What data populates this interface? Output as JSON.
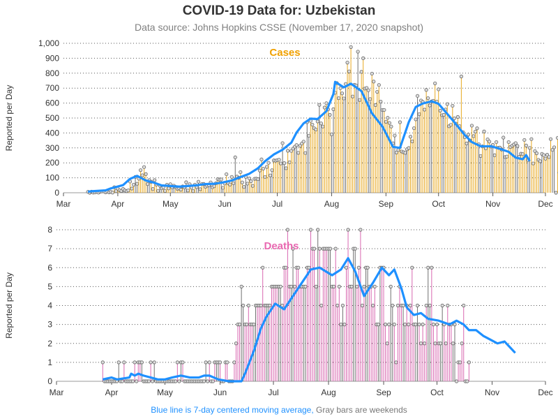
{
  "title": "COVID-19 Data for: Uzbekistan",
  "subtitle": "Data source: Johns Hopkins CSSE (November 17, 2020 snapshot)",
  "footer": {
    "moving_average_note": "Blue line is 7-day centered moving average,",
    "weekend_note": "Gray bars are weekends"
  },
  "colors": {
    "cases_bar": "#e8a820",
    "deaths_bar": "#d867b0",
    "weekend_bar": "#707070",
    "moving_average": "#1e90ff",
    "cases_label": "#f0a000",
    "deaths_label": "#e868b0"
  },
  "chart_data": [
    {
      "type": "bar",
      "panel_label": "Cases",
      "ylabel": "Reported per Day",
      "ylim": [
        0,
        1000
      ],
      "yticks": [
        0,
        100,
        200,
        300,
        400,
        500,
        600,
        700,
        800,
        900,
        1000
      ],
      "ytick_labels": [
        "0",
        "100",
        "200",
        "300",
        "400",
        "500",
        "600",
        "700",
        "800",
        "900",
        "1,000"
      ],
      "x_range": [
        "2020-03-01",
        "2020-12-01"
      ],
      "x_tick_labels": [
        "Mar",
        "Apr",
        "May",
        "Jun",
        "Jul",
        "Aug",
        "Sep",
        "Oct",
        "Nov",
        "Dec"
      ],
      "grid": "horizontal dotted",
      "series_start": "2020-03-15",
      "series_end": "2020-11-16",
      "values": [
        6,
        0,
        7,
        1,
        2,
        6,
        1,
        7,
        9,
        9,
        3,
        8,
        3,
        6,
        1,
        37,
        11,
        27,
        17,
        12,
        25,
        16,
        11,
        16,
        75,
        28,
        54,
        106,
        60,
        94,
        151,
        117,
        172,
        125,
        58,
        84,
        73,
        25,
        84,
        55,
        13,
        47,
        30,
        35,
        12,
        53,
        29,
        57,
        36,
        47,
        39,
        26,
        29,
        21,
        42,
        36,
        70,
        15,
        57,
        34,
        11,
        54,
        38,
        74,
        24,
        58,
        59,
        40,
        47,
        50,
        69,
        37,
        44,
        64,
        91,
        88,
        89,
        33,
        62,
        124,
        64,
        55,
        106,
        64,
        237,
        108,
        100,
        138,
        69,
        39,
        106,
        61,
        96,
        77,
        46,
        93,
        94,
        91,
        149,
        223,
        161,
        106,
        173,
        200,
        116,
        151,
        216,
        215,
        218,
        221,
        196,
        332,
        198,
        164,
        281,
        204,
        280,
        295,
        308,
        319,
        267,
        314,
        329,
        342,
        266,
        472,
        381,
        481,
        456,
        432,
        423,
        477,
        588,
        464,
        443,
        570,
        599,
        558,
        521,
        391,
        559,
        669,
        734,
        633,
        700,
        665,
        631,
        728,
        871,
        812,
        975,
        644,
        722,
        718,
        944,
        621,
        809,
        900,
        697,
        701,
        686,
        627,
        797,
        744,
        587,
        675,
        721,
        610,
        554,
        554,
        475,
        501,
        467,
        443,
        331,
        383,
        269,
        286,
        472,
        276,
        271,
        267,
        291,
        299,
        375,
        344,
        432,
        491,
        648,
        526,
        617,
        608,
        556,
        688,
        633,
        584,
        611,
        615,
        732,
        610,
        692,
        549,
        519,
        521,
        557,
        593,
        445,
        454,
        582,
        498,
        462,
        507,
        446,
        778,
        405,
        372,
        330,
        389,
        350,
        449,
        379,
        409,
        431,
        324,
        246,
        310,
        410,
        297,
        357,
        342,
        309,
        320,
        251,
        339,
        301,
        302,
        289,
        369,
        239,
        242,
        339,
        306,
        315,
        323,
        332,
        313,
        240,
        261,
        259,
        353,
        316,
        219,
        300,
        359,
        196,
        279,
        264,
        220,
        211,
        260,
        252,
        228,
        254,
        239,
        359,
        287,
        304,
        0,
        367,
        135,
        208,
        248,
        269
      ],
      "moving_average_points": [
        [
          14,
          7
        ],
        [
          16,
          10
        ],
        [
          24,
          16
        ],
        [
          27,
          29
        ],
        [
          34,
          51
        ],
        [
          38,
          93
        ],
        [
          42,
          113
        ],
        [
          47,
          82
        ],
        [
          52,
          66
        ],
        [
          56,
          49
        ],
        [
          61,
          45
        ],
        [
          66,
          41
        ],
        [
          71,
          45
        ],
        [
          76,
          50
        ],
        [
          81,
          58
        ],
        [
          86,
          60
        ],
        [
          91,
          69
        ],
        [
          96,
          82
        ],
        [
          101,
          105
        ],
        [
          106,
          127
        ],
        [
          111,
          164
        ],
        [
          115,
          211
        ],
        [
          120,
          256
        ],
        [
          125,
          288
        ],
        [
          130,
          335
        ],
        [
          133,
          403
        ],
        [
          137,
          464
        ],
        [
          141,
          496
        ],
        [
          145,
          493
        ],
        [
          150,
          546
        ],
        [
          154,
          660
        ],
        [
          155,
          742
        ],
        [
          160,
          705
        ],
        [
          164,
          730
        ],
        [
          170,
          680
        ],
        [
          176,
          532
        ],
        [
          182,
          443
        ],
        [
          188,
          307
        ],
        [
          192,
          300
        ],
        [
          197,
          472
        ],
        [
          201,
          574
        ],
        [
          205,
          597
        ],
        [
          210,
          612
        ],
        [
          214,
          595
        ],
        [
          220,
          514
        ],
        [
          224,
          458
        ],
        [
          229,
          386
        ],
        [
          233,
          339
        ],
        [
          238,
          311
        ],
        [
          244,
          311
        ],
        [
          249,
          294
        ],
        [
          254,
          274
        ],
        [
          258,
          235
        ],
        [
          262,
          224
        ],
        [
          264,
          252
        ],
        [
          266,
          212
        ]
      ],
      "moving_average_note": "Blue line is 7-day centered moving average"
    },
    {
      "type": "bar",
      "panel_label": "Deaths",
      "ylabel": "Reported per Day",
      "ylim": [
        0,
        8
      ],
      "yticks": [
        0,
        1,
        2,
        3,
        4,
        5,
        6,
        7,
        8
      ],
      "ytick_labels": [
        "0",
        "1",
        "2",
        "3",
        "4",
        "5",
        "6",
        "7",
        "8"
      ],
      "x_range": [
        "2020-03-01",
        "2020-12-01"
      ],
      "x_tick_labels": [
        "Mar",
        "Apr",
        "May",
        "Jun",
        "Jul",
        "Aug",
        "Sep",
        "Oct",
        "Nov",
        "Dec"
      ],
      "grid": "horizontal dotted",
      "series_start": "2020-03-27",
      "series_end": "2020-11-16",
      "values": [
        1,
        0,
        0,
        0,
        0,
        0,
        0,
        0,
        0,
        1,
        0,
        0,
        1,
        0,
        0,
        0,
        0,
        0,
        1,
        0,
        1,
        1,
        1,
        0,
        0,
        0,
        0,
        1,
        0,
        1,
        0,
        0,
        0,
        0,
        0,
        0,
        0,
        0,
        0,
        0,
        0,
        0,
        1,
        0,
        1,
        1,
        0,
        0,
        0,
        0,
        0,
        0,
        0,
        0,
        0,
        0,
        0,
        0,
        1,
        0,
        1,
        0,
        0,
        1,
        1,
        1,
        1,
        0,
        0,
        1,
        1,
        0,
        0,
        0,
        1,
        2,
        3,
        3,
        5,
        4,
        3,
        3,
        4,
        3,
        3,
        3,
        4,
        4,
        4,
        4,
        6,
        4,
        4,
        4,
        4,
        5,
        5,
        5,
        5,
        5,
        5,
        4,
        6,
        6,
        8,
        5,
        5,
        7,
        5,
        6,
        6,
        5,
        5,
        5,
        5,
        6,
        6,
        8,
        7,
        7,
        5,
        8,
        7,
        4,
        7,
        7,
        7,
        7,
        7,
        5,
        5,
        7,
        4,
        5,
        3,
        4,
        3,
        6,
        8,
        5,
        5,
        7,
        7,
        5,
        6,
        8,
        4,
        5,
        6,
        6,
        5,
        5,
        4,
        5,
        3,
        3,
        6,
        6,
        6,
        3,
        2,
        3,
        5,
        4,
        3,
        1,
        4,
        5,
        4,
        4,
        3,
        4,
        3,
        4,
        6,
        3,
        3,
        4,
        3,
        2,
        3,
        2,
        4,
        6,
        4,
        6,
        3,
        2,
        3,
        2,
        2,
        4,
        3,
        2,
        4,
        3,
        3,
        2,
        3,
        0,
        1,
        1,
        2,
        4,
        0,
        0,
        1
      ],
      "moving_average_points": [
        [
          26,
          0.1
        ],
        [
          31,
          0.2
        ],
        [
          34,
          0.1
        ],
        [
          41,
          0.2
        ],
        [
          42,
          0.4
        ],
        [
          44,
          0.3
        ],
        [
          46,
          0.4
        ],
        [
          49,
          0.3
        ],
        [
          53,
          0.2
        ],
        [
          57,
          0.1
        ],
        [
          61,
          0.1
        ],
        [
          65,
          0.2
        ],
        [
          70,
          0.3
        ],
        [
          75,
          0.2
        ],
        [
          80,
          0.2
        ],
        [
          83,
          0.3
        ],
        [
          86,
          0.3
        ],
        [
          91,
          0.1
        ],
        [
          97,
          0.0
        ],
        [
          104,
          0.0
        ],
        [
          106,
          0.4
        ],
        [
          111,
          1.6
        ],
        [
          115,
          2.8
        ],
        [
          118,
          3.4
        ],
        [
          123,
          4.1
        ],
        [
          128,
          3.8
        ],
        [
          133,
          4.5
        ],
        [
          138,
          5.2
        ],
        [
          143,
          5.9
        ],
        [
          148,
          6.0
        ],
        [
          155,
          5.6
        ],
        [
          160,
          5.9
        ],
        [
          164,
          6.5
        ],
        [
          168,
          5.8
        ],
        [
          173,
          4.5
        ],
        [
          178,
          5.2
        ],
        [
          183,
          6.0
        ],
        [
          187,
          5.6
        ],
        [
          190,
          5.9
        ],
        [
          194,
          4.9
        ],
        [
          197,
          3.9
        ],
        [
          201,
          3.5
        ],
        [
          205,
          3.6
        ],
        [
          209,
          3.3
        ],
        [
          215,
          3.2
        ],
        [
          221,
          3.0
        ],
        [
          225,
          3.2
        ],
        [
          229,
          3.0
        ],
        [
          232,
          2.7
        ],
        [
          236,
          2.7
        ],
        [
          240,
          2.4
        ],
        [
          244,
          2.2
        ],
        [
          248,
          2.0
        ],
        [
          252,
          2.1
        ],
        [
          256,
          1.7
        ],
        [
          258,
          1.5
        ]
      ],
      "moving_average_note": "Blue line is 7-day centered moving average"
    }
  ]
}
